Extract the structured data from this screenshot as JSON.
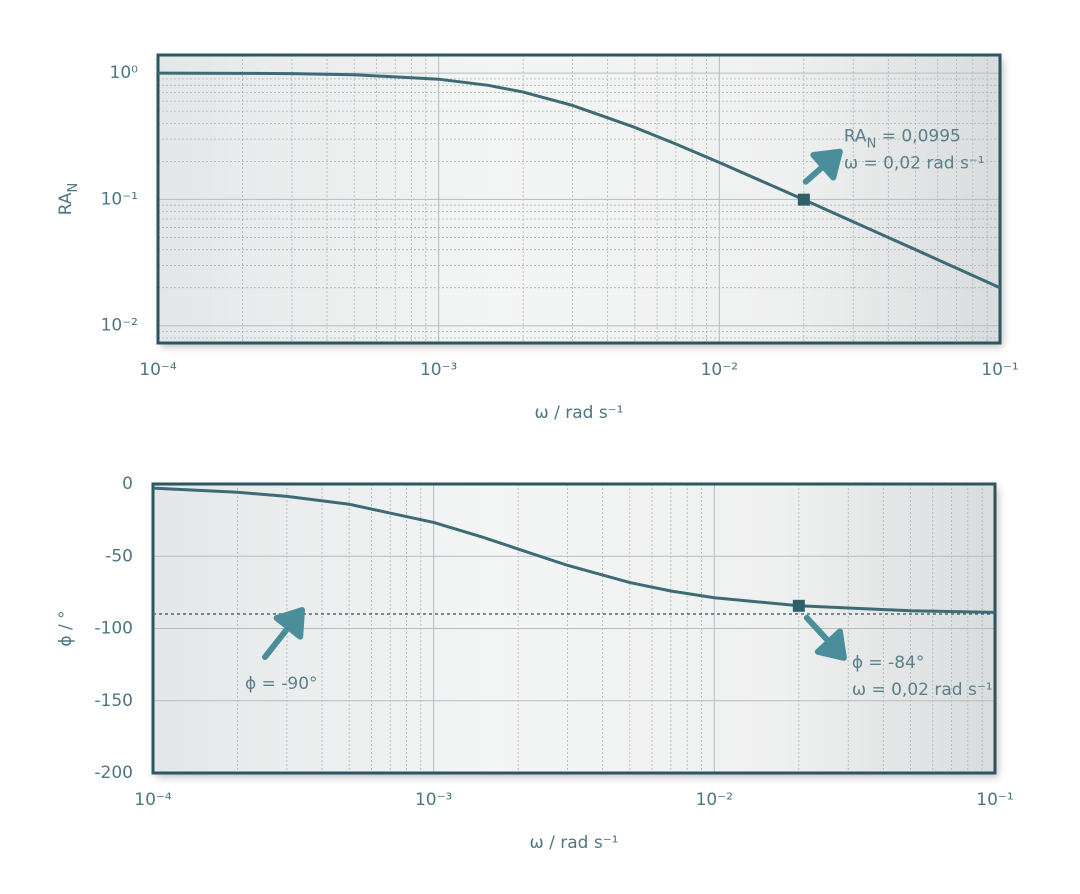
{
  "chart_data": [
    {
      "type": "line",
      "xlog": true,
      "ylog": true,
      "xlim": [
        0.0001,
        0.1
      ],
      "ylim": [
        0.0073,
        1.39
      ],
      "xticks": [
        {
          "value": 0.0001,
          "label": "10⁻⁴"
        },
        {
          "value": 0.001,
          "label": "10⁻³"
        },
        {
          "value": 0.01,
          "label": "10⁻²"
        },
        {
          "value": 0.1,
          "label": "10⁻¹"
        }
      ],
      "yticks": [
        {
          "value": 0.01,
          "label": "10⁻²"
        },
        {
          "value": 0.1,
          "label": "10⁻¹"
        },
        {
          "value": 1,
          "label": "10⁰"
        }
      ],
      "xlabel": "ω / rad s⁻¹",
      "ylabel": [
        "RA",
        "N"
      ],
      "grid": true,
      "color": "#3d6b75",
      "x": [
        0.0001,
        0.0002,
        0.0003,
        0.0005,
        0.001,
        0.0015,
        0.002,
        0.003,
        0.005,
        0.007,
        0.01,
        0.02,
        0.05,
        0.1
      ],
      "values": [
        0.9988,
        0.995,
        0.9889,
        0.9701,
        0.8944,
        0.8,
        0.7071,
        0.5547,
        0.3714,
        0.2747,
        0.1961,
        0.0995,
        0.04,
        0.02
      ],
      "points": {
        "x": [
          0.02
        ],
        "values": [
          0.0995
        ]
      },
      "annotations": [
        {
          "lines": [
            [
              "RA",
              "N",
              " = 0,0995"
            ],
            [
              "ω = 0,02  rad s⁻¹"
            ]
          ]
        }
      ]
    },
    {
      "type": "line",
      "xlog": true,
      "ylog": false,
      "xlim": [
        0.0001,
        0.1
      ],
      "ylim": [
        -200,
        0
      ],
      "xticks": [
        {
          "value": 0.0001,
          "label": "10⁻⁴"
        },
        {
          "value": 0.001,
          "label": "10⁻³"
        },
        {
          "value": 0.01,
          "label": "10⁻²"
        },
        {
          "value": 0.1,
          "label": "10⁻¹"
        }
      ],
      "yticks": [
        0,
        -50,
        -100,
        -150,
        -200
      ],
      "xlabel": "ω / rad s⁻¹",
      "ylabel": [
        "ϕ / °"
      ],
      "grid": true,
      "color": "#3d6b75",
      "x": [
        0.0001,
        0.0002,
        0.0003,
        0.0005,
        0.001,
        0.0015,
        0.002,
        0.003,
        0.005,
        0.007,
        0.01,
        0.02,
        0.05,
        0.1
      ],
      "values": [
        -2.86,
        -5.71,
        -8.53,
        -14.04,
        -26.57,
        -36.87,
        -45,
        -56.31,
        -68.2,
        -74.05,
        -78.69,
        -84.29,
        -87.71,
        -88.85
      ],
      "hline": -90,
      "points": {
        "x": [
          0.02
        ],
        "values": [
          -84.29
        ]
      },
      "annotations": [
        {
          "lines": [
            [
              "ϕ = -90°"
            ]
          ]
        },
        {
          "lines": [
            [
              "ϕ = -84°"
            ],
            [
              "ω = 0,02  rad s⁻¹"
            ]
          ]
        }
      ]
    }
  ]
}
